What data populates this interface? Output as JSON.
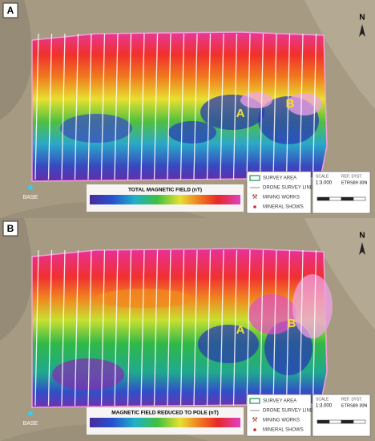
{
  "panels": [
    {
      "label": "A",
      "anomalies": [
        "A",
        "B"
      ],
      "north": "N",
      "base": "BASE",
      "colorbar_title": "TOTAL MAGNETIC FIELD (nT)",
      "legend": [
        "SURVEY AREA",
        "DRONE SURVEY LINES",
        "MINING WORKS",
        "MINERAL SHOWS"
      ],
      "scale_label": "SCALE",
      "scale": "1:3.000",
      "ref_label": "REF. SYST.",
      "ref": "ETRS89 30N"
    },
    {
      "label": "B",
      "anomalies": [
        "A",
        "B"
      ],
      "north": "N",
      "base": "BASE",
      "colorbar_title": "MAGNETIC FIELD REDUCED TO POLE (nT)",
      "legend": [
        "SURVEY AREA",
        "DRONE SURVEY LINES",
        "MINING WORKS",
        "MINERAL SHOWS"
      ],
      "scale_label": "SCALE",
      "scale": "1:3.000",
      "ref_label": "REF. SYST.",
      "ref": "ETRS89 30N"
    }
  ]
}
